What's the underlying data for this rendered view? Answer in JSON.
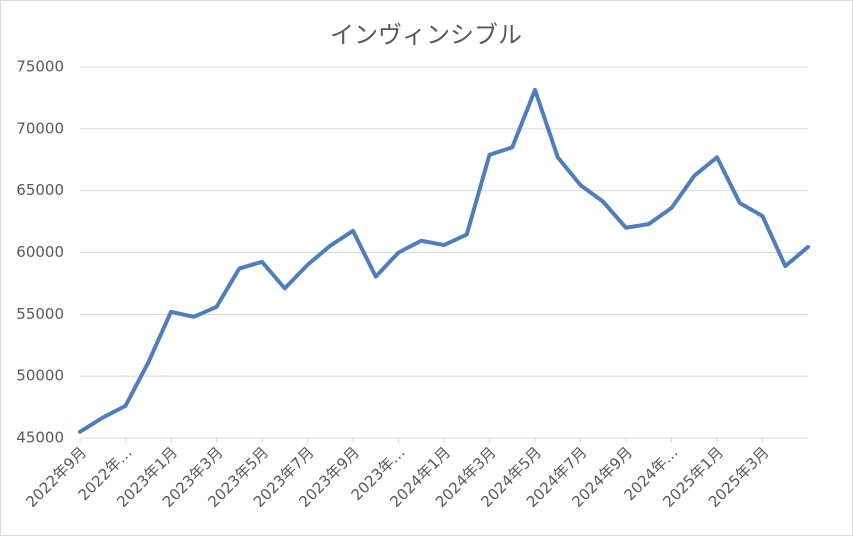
{
  "chart_data": {
    "type": "line",
    "title": "インヴィンシブル",
    "categories": [
      "2022年9月",
      null,
      "2022年…",
      null,
      "2023年1月",
      null,
      "2023年3月",
      null,
      "2023年5月",
      null,
      "2023年7月",
      null,
      "2023年9月",
      null,
      "2023年…",
      null,
      "2024年1月",
      null,
      "2024年3月",
      null,
      "2024年5月",
      null,
      "2024年7月",
      null,
      "2024年9月",
      null,
      "2024年…",
      null,
      "2025年1月",
      null,
      "2025年3月",
      null,
      null
    ],
    "series": [
      {
        "color": "#4e7ebc",
        "values": [
          45500,
          46650,
          47600,
          51100,
          55200,
          54800,
          55600,
          58700,
          59250,
          57100,
          59000,
          60550,
          61750,
          58050,
          60000,
          60950,
          60600,
          61450,
          67900,
          68500,
          73150,
          67700,
          65450,
          64100,
          62000,
          62300,
          63600,
          66200,
          67700,
          64000,
          62950,
          58900,
          60450
        ]
      }
    ],
    "ylim": [
      45000,
      75000
    ],
    "yticks": [
      45000,
      50000,
      55000,
      60000,
      65000,
      70000,
      75000
    ],
    "grid": true
  }
}
